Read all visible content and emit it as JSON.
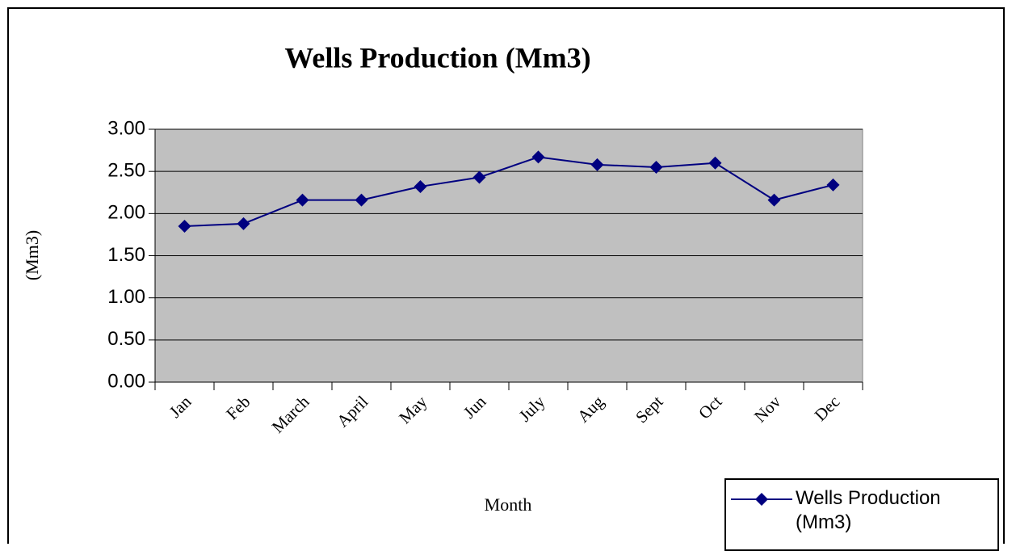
{
  "chart_data": {
    "type": "line",
    "title": "Wells Production (Mm3)",
    "x_label": "Month",
    "y_label": "(Mm3)",
    "categories": [
      "Jan",
      "Feb",
      "March",
      "April",
      "May",
      "Jun",
      "July",
      "Aug",
      "Sept",
      "Oct",
      "Nov",
      "Dec"
    ],
    "series": [
      {
        "name": "Wells Production (Mm3)",
        "color": "#000080",
        "values": [
          1.85,
          1.88,
          2.16,
          2.16,
          2.32,
          2.43,
          2.67,
          2.58,
          2.55,
          2.6,
          2.16,
          2.34
        ]
      }
    ],
    "ylim": [
      0,
      3
    ],
    "yticks": [
      {
        "value": 0,
        "label": "0.00"
      },
      {
        "value": 0.5,
        "label": "0.50"
      },
      {
        "value": 1,
        "label": "1.00"
      },
      {
        "value": 1.5,
        "label": "1.50"
      },
      {
        "value": 2,
        "label": "2.00"
      },
      {
        "value": 2.5,
        "label": "2.50"
      },
      {
        "value": 3,
        "label": "3.00"
      }
    ],
    "grid": true,
    "legend": "bottom-right",
    "plot_background": "#c0c0c0"
  }
}
